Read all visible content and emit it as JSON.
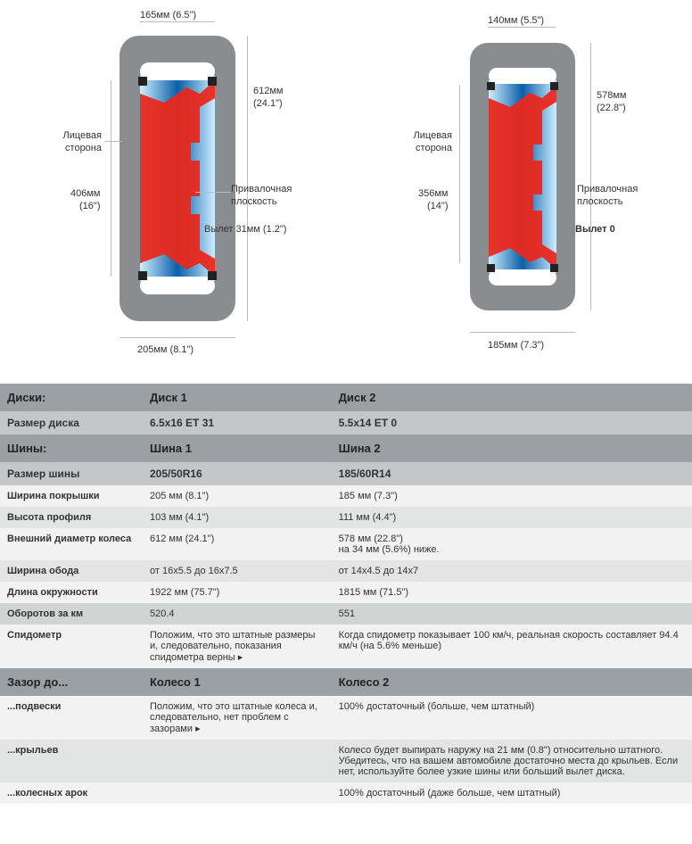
{
  "diagrams": {
    "left": {
      "rim_width": {
        "mm": "165мм",
        "in": "(6.5\")"
      },
      "tire_width": {
        "mm": "205мм",
        "in": "(8.1\")"
      },
      "outer_diam": {
        "mm": "612мм",
        "in": "(24.1\")"
      },
      "rim_diam": {
        "mm": "406мм",
        "in": "(16\")"
      },
      "face_side": "Лицевая\nсторона",
      "mating_plane": "Привалочная\nплоскость",
      "offset": "Вылет 31мм (1.2\")"
    },
    "right": {
      "rim_width": {
        "mm": "140мм",
        "in": "(5.5\")"
      },
      "tire_width": {
        "mm": "185мм",
        "in": "(7.3\")"
      },
      "outer_diam": {
        "mm": "578мм",
        "in": "(22.8\")"
      },
      "rim_diam": {
        "mm": "356мм",
        "in": "(14\")"
      },
      "face_side": "Лицевая\nсторона",
      "mating_plane": "Привалочная\nплоскость",
      "offset": "Вылет 0"
    },
    "colors": {
      "tire": "#8a8d90",
      "rim": "#e8281e",
      "inner_light": "#cdeeff",
      "inner_dark": "#0a5fa8",
      "bead": "#333"
    }
  },
  "table": {
    "sections": [
      {
        "kind": "dark",
        "cells": [
          "Диски:",
          "Диск 1",
          "Диск 2"
        ]
      },
      {
        "kind": "hdr",
        "cells": [
          "Размер диска",
          "6.5x16 ET 31",
          "5.5x14 ET 0"
        ]
      },
      {
        "kind": "dark",
        "cells": [
          "Шины:",
          "Шина 1",
          "Шина 2"
        ]
      },
      {
        "kind": "hdr",
        "cells": [
          "Размер шины",
          "205/50R16",
          "185/60R14"
        ]
      },
      {
        "kind": "r1",
        "cells": [
          "Ширина покрышки",
          "205 мм (8.1\")",
          "185 мм (7.3\")"
        ]
      },
      {
        "kind": "r2",
        "cells": [
          "Высота профиля",
          "103 мм (4.1\")",
          "111 мм (4.4\")"
        ]
      },
      {
        "kind": "r1",
        "cells": [
          "Внешний диаметр колеса",
          "612 мм (24.1\")",
          "578 мм (22.8\")\nна 34 мм (5.6%) ниже."
        ]
      },
      {
        "kind": "r2",
        "cells": [
          "Ширина обода",
          "от 16x5.5 до 16x7.5",
          "от 14x4.5 до 14x7"
        ]
      },
      {
        "kind": "r1",
        "cells": [
          "Длина окружности",
          "1922 мм (75.7\")",
          "1815 мм (71.5\")"
        ]
      },
      {
        "kind": "r3",
        "cells": [
          "Оборотов за км",
          "520.4",
          "551"
        ]
      },
      {
        "kind": "r1",
        "cells": [
          "Спидометр",
          "Положим, что это штатные размеры и, следовательно, показания спидометра верны ▸",
          "Когда спидометр показывает 100 км/ч, реальная скорость составляет 94.4 км/ч (на 5.6% меньше)"
        ]
      },
      {
        "kind": "dark",
        "cells": [
          "Зазор до...",
          "Колесо 1",
          "Колесо 2"
        ]
      },
      {
        "kind": "r1",
        "cells": [
          "...подвески",
          "Положим, что это штатные колеса и, следовательно, нет проблем с зазорами ▸",
          "100% достаточный (больше, чем штатный)"
        ]
      },
      {
        "kind": "r2",
        "cells": [
          "...крыльев",
          "",
          "Колесо будет выпирать наружу на 21 мм (0.8\") относительно штатного. Убедитесь, что на вашем автомобиле достаточно места до крыльев. Если нет, используйте более узкие шины или больший вылет диска."
        ]
      },
      {
        "kind": "r1",
        "cells": [
          "...колесных арок",
          "",
          "100% достаточный (даже больше, чем штатный)"
        ]
      }
    ]
  }
}
